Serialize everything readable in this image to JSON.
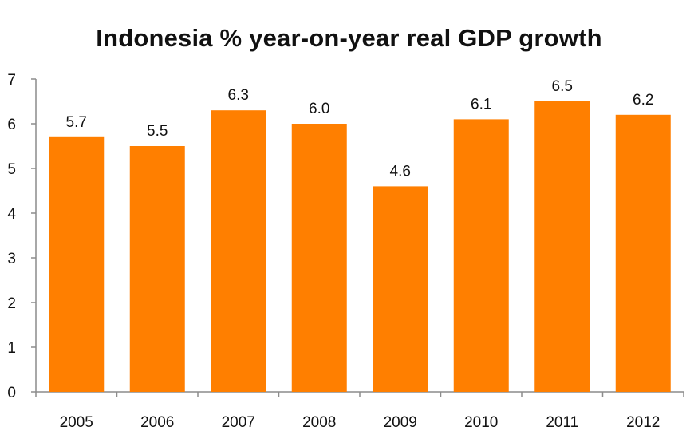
{
  "chart_data": {
    "type": "bar",
    "title": "Indonesia % year-on-year real GDP growth",
    "xlabel": "",
    "ylabel": "",
    "categories": [
      "2005",
      "2006",
      "2007",
      "2008",
      "2009",
      "2010",
      "2011",
      "2012"
    ],
    "values": [
      5.7,
      5.5,
      6.3,
      6.0,
      4.6,
      6.1,
      6.5,
      6.2
    ],
    "data_labels": [
      "5.7",
      "5.5",
      "6.3",
      "6.0",
      "4.6",
      "6.1",
      "6.5",
      "6.2"
    ],
    "ylim": [
      0,
      7
    ],
    "yticks": [
      "0",
      "1",
      "2",
      "3",
      "4",
      "5",
      "6",
      "7"
    ],
    "grid": false,
    "legend": "none",
    "bar_color": "#FF7F00",
    "axis_color": "#8C8C8C"
  }
}
